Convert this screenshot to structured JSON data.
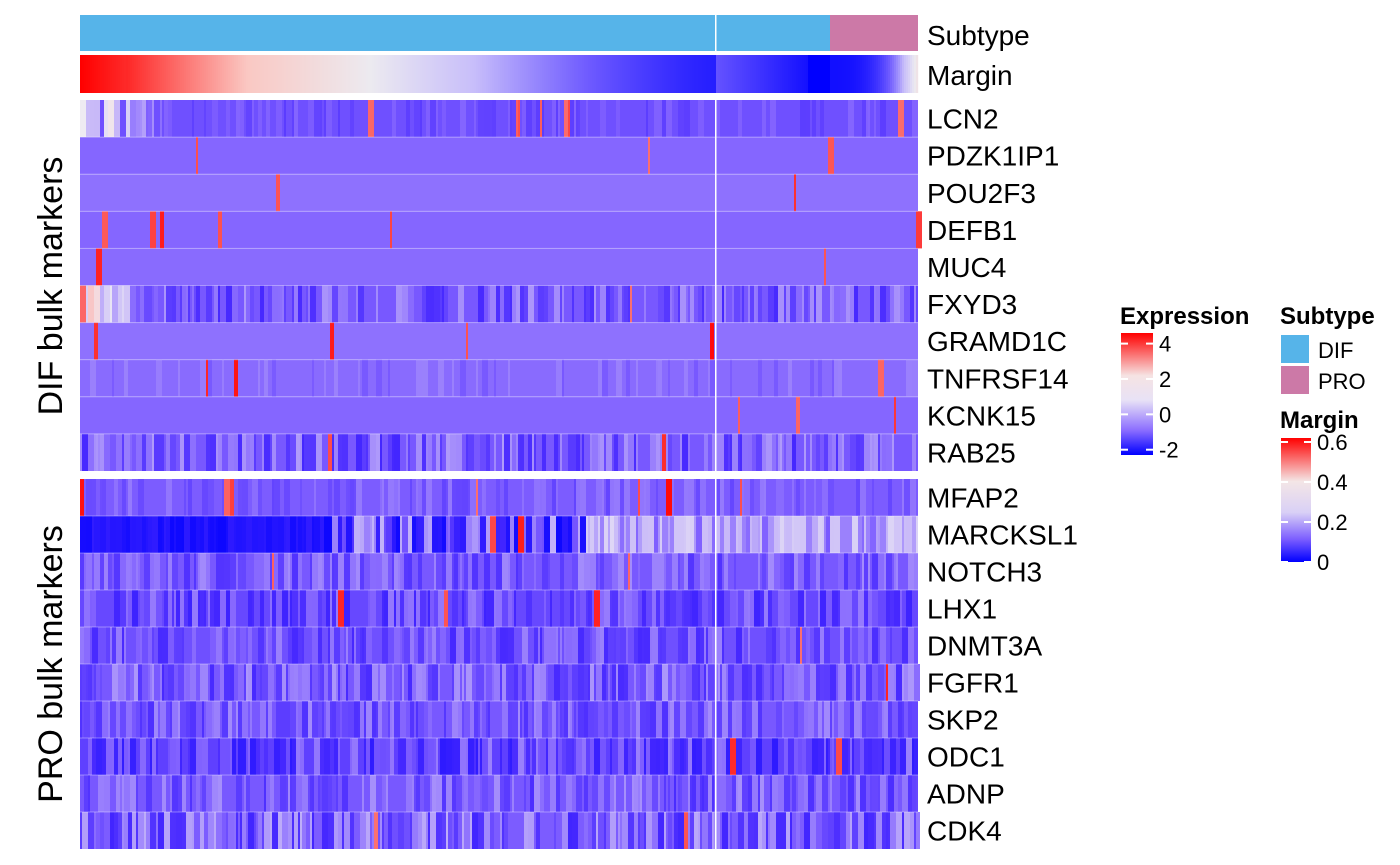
{
  "chart_data": {
    "type": "heatmap",
    "title": "",
    "annotations": [
      {
        "name": "Subtype",
        "type": "categorical",
        "levels": [
          "DIF",
          "PRO"
        ],
        "colors": {
          "DIF": "#56B4E9",
          "PRO": "#CC79A7"
        },
        "column_split_fraction_dif_block1": 0.758,
        "fraction_pro": 0.105
      },
      {
        "name": "Margin",
        "type": "continuous",
        "range": [
          0,
          0.6
        ],
        "direction": "decreasing left to right within each column block"
      }
    ],
    "row_groups": [
      {
        "label": "DIF bulk markers",
        "genes": [
          "LCN2",
          "PDZK1IP1",
          "POU2F3",
          "DEFB1",
          "MUC4",
          "FXYD3",
          "GRAMD1C",
          "TNFRSF14",
          "KCNK15",
          "RAB25"
        ]
      },
      {
        "label": "PRO bulk markers",
        "genes": [
          "MFAP2",
          "MARCKSL1",
          "NOTCH3",
          "LHX1",
          "DNMT3A",
          "FGFR1",
          "SKP2",
          "ODC1",
          "ADNP",
          "CDK4"
        ]
      }
    ],
    "column_blocks": 2,
    "n_columns_approx": 700,
    "color_scale": {
      "low": "#0000FF",
      "mid": "#EEEEEE",
      "high": "#FF0000",
      "expression_range": [
        -2,
        4.5
      ],
      "baseline_expression": -0.5
    }
  },
  "legends": {
    "expression": {
      "title": "Expression",
      "ticks": [
        "4",
        "2",
        "0",
        "-2"
      ],
      "tick_values": [
        4,
        2,
        0,
        -2
      ],
      "range": [
        -2.3,
        4.6
      ]
    },
    "subtype": {
      "title": "Subtype",
      "items": [
        {
          "label": "DIF",
          "color": "#56B4E9"
        },
        {
          "label": "PRO",
          "color": "#CC79A7"
        }
      ]
    },
    "margin": {
      "title": "Margin",
      "ticks": [
        "0.6",
        "0.4",
        "0.2",
        "0"
      ],
      "tick_values": [
        0.6,
        0.4,
        0.2,
        0
      ],
      "range": [
        0,
        0.62
      ]
    }
  }
}
